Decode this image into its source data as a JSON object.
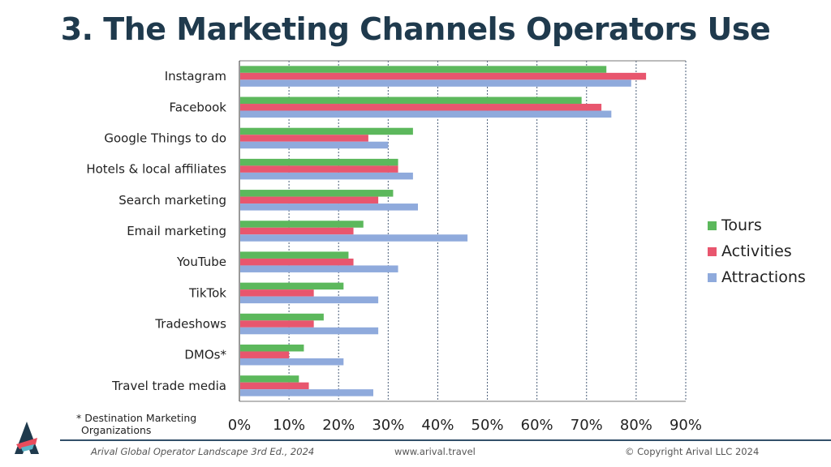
{
  "title": "3. The Marketing Channels Operators Use",
  "legend": [
    {
      "name": "Tours",
      "color": "#5cb85c"
    },
    {
      "name": "Activities",
      "color": "#e8566e"
    },
    {
      "name": "Attractions",
      "color": "#8faadc"
    }
  ],
  "footnote": {
    "line1": "* Destination Marketing",
    "line2": "Organizations"
  },
  "footer": {
    "left": "Arival Global Operator Landscape 3rd Ed., 2024",
    "middle": "www.arival.travel",
    "right": "© Copyright Arival LLC 2024"
  },
  "logo": {
    "icon": "arival-logo-icon"
  },
  "chart_data": {
    "type": "bar",
    "orientation": "horizontal",
    "categories": [
      "Instagram",
      "Facebook",
      "Google Things to do",
      "Hotels &  local affiliates",
      "Search marketing",
      "Email marketing",
      "YouTube",
      "TikTok",
      "Tradeshows",
      "DMOs*",
      "Travel trade media"
    ],
    "series": [
      {
        "name": "Tours",
        "color": "#5cb85c",
        "values": [
          74,
          69,
          35,
          32,
          31,
          25,
          22,
          21,
          17,
          13,
          12
        ]
      },
      {
        "name": "Activities",
        "color": "#e8566e",
        "values": [
          82,
          73,
          26,
          32,
          28,
          23,
          23,
          15,
          15,
          10,
          14
        ]
      },
      {
        "name": "Attractions",
        "color": "#8faadc",
        "values": [
          79,
          75,
          30,
          35,
          36,
          46,
          32,
          28,
          28,
          21,
          27
        ]
      }
    ],
    "xticks": [
      "0%",
      "10%",
      "20%",
      "30%",
      "40%",
      "50%",
      "60%",
      "70%",
      "80%",
      "90%"
    ],
    "xlim": [
      0,
      90
    ],
    "xlabel": "",
    "ylabel": "",
    "grid": "vertical-dashed",
    "legend_position": "right"
  }
}
